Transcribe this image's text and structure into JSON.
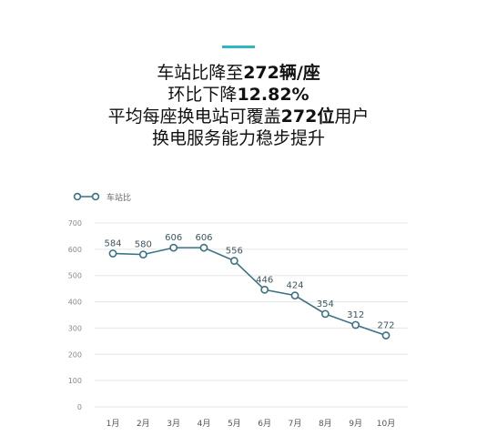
{
  "headline": {
    "line1": {
      "pre": "车站比降至",
      "bold": "272辆/座",
      "post": ""
    },
    "line2": {
      "pre": "环比下降",
      "bold": "12.82%",
      "post": ""
    },
    "line3": {
      "pre": "平均每座换电站可覆盖",
      "bold": "272位",
      "post": "用户"
    },
    "line4": {
      "pre": "换电服务能力稳步提升",
      "bold": "",
      "post": ""
    }
  },
  "colors": {
    "accent": "#2fb6c3",
    "line": "#3c7282",
    "grid": "#e6e6e6",
    "tick": "#888888"
  },
  "chart_data": {
    "type": "line",
    "categories": [
      "1月",
      "2月",
      "3月",
      "4月",
      "5月",
      "6月",
      "7月",
      "8月",
      "9月",
      "10月"
    ],
    "series": [
      {
        "name": "车站比",
        "values": [
          584,
          580,
          606,
          606,
          556,
          446,
          424,
          354,
          312,
          272
        ]
      }
    ],
    "ylim": [
      0,
      700
    ],
    "yticks": [
      0,
      100,
      200,
      300,
      400,
      500,
      600,
      700
    ],
    "grid": true,
    "legend": "top-left",
    "title": "",
    "xlabel": "",
    "ylabel": ""
  }
}
